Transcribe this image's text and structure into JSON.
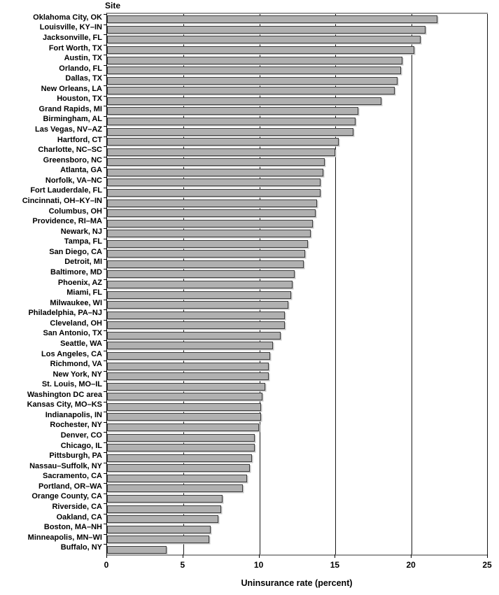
{
  "chart_data": {
    "type": "bar",
    "orientation": "horizontal",
    "title": "Site",
    "xlabel": "Uninsurance rate (percent)",
    "xlim": [
      0,
      25
    ],
    "xticks": [
      0,
      5,
      10,
      15,
      20,
      25
    ],
    "grid": "vertical gridlines at each x tick",
    "legend": "none",
    "bar_color": "#b0b0b0",
    "bar_border_color": "#3d3d3d",
    "categories": [
      "Oklahoma City, OK",
      "Louisville, KY–IN",
      "Jacksonville, FL",
      "Fort Worth, TX",
      "Austin, TX",
      "Orlando, FL",
      "Dallas, TX",
      "New Orleans, LA",
      "Houston, TX",
      "Grand Rapids, MI",
      "Birmingham, AL",
      "Las Vegas, NV–AZ",
      "Hartford, CT",
      "Charlotte, NC–SC",
      "Greensboro, NC",
      "Atlanta, GA",
      "Norfolk, VA–NC",
      "Fort Lauderdale, FL",
      "Cincinnati, OH–KY–IN",
      "Columbus, OH",
      "Providence, RI–MA",
      "Newark, NJ",
      "Tampa, FL",
      "San Diego, CA",
      "Detroit, MI",
      "Baltimore, MD",
      "Phoenix, AZ",
      "Miami, FL",
      "Milwaukee, WI",
      "Philadelphia, PA–NJ",
      "Cleveland, OH",
      "San Antonio, TX",
      "Seattle, WA",
      "Los Angeles, CA",
      "Richmond, VA",
      "New York, NY",
      "St. Louis, MO–IL",
      "Washington DC area",
      "Kansas City, MO–KS",
      "Indianapolis, IN",
      "Rochester, NY",
      "Denver, CO",
      "Chicago, IL",
      "Pittsburgh, PA",
      "Nassau–Suffolk, NY",
      "Sacramento, CA",
      "Portland, OR–WA",
      "Orange County, CA",
      "Riverside, CA",
      "Oakland, CA",
      "Boston, MA–NH",
      "Minneapolis, MN–WI",
      "Buffalo, NY"
    ],
    "values": [
      21.6,
      20.8,
      20.5,
      20.1,
      19.3,
      19.2,
      19.0,
      18.8,
      17.9,
      16.4,
      16.2,
      16.1,
      15.1,
      14.9,
      14.2,
      14.1,
      13.9,
      13.9,
      13.7,
      13.6,
      13.4,
      13.3,
      13.1,
      12.9,
      12.8,
      12.2,
      12.1,
      12.0,
      11.8,
      11.6,
      11.6,
      11.3,
      10.8,
      10.6,
      10.5,
      10.5,
      10.3,
      10.1,
      10.0,
      10.0,
      9.9,
      9.6,
      9.6,
      9.4,
      9.3,
      9.1,
      8.8,
      7.5,
      7.4,
      7.2,
      6.7,
      6.6,
      3.8
    ]
  }
}
